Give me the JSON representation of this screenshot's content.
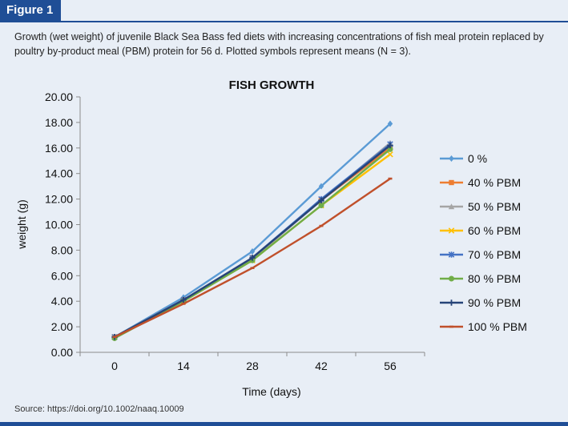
{
  "figure_label": "Figure 1",
  "caption": "Growth (wet weight) of juvenile Black Sea Bass fed diets with increasing concentrations of fish meal protein replaced by poultry by-product meal (PBM) protein for 56 d. Plotted symbols represent means (N = 3).",
  "source": "Source: https://doi.org/10.1002/naaq.10009",
  "colors": {
    "accent": "#1f4e96",
    "background": "#e8eef6"
  },
  "chart_data": {
    "type": "line",
    "title": "FISH GROWTH",
    "xlabel": "Time (days)",
    "ylabel": "weight (g)",
    "x": [
      0,
      14,
      28,
      42,
      56
    ],
    "x_tick_labels": [
      "0",
      "14",
      "28",
      "42",
      "56"
    ],
    "ylim": [
      0,
      20
    ],
    "y_tick_labels": [
      "0.00",
      "2.00",
      "4.00",
      "6.00",
      "8.00",
      "10.00",
      "12.00",
      "14.00",
      "16.00",
      "18.00",
      "20.00"
    ],
    "legend_position": "right",
    "grid": false,
    "series": [
      {
        "name": "0 %",
        "color": "#5b9bd5",
        "marker": "diamond",
        "values": [
          1.2,
          4.3,
          7.9,
          13.0,
          17.9
        ]
      },
      {
        "name": "40 % PBM",
        "color": "#ed7d31",
        "marker": "square",
        "values": [
          1.2,
          4.1,
          7.4,
          11.9,
          16.0
        ]
      },
      {
        "name": "50 % PBM",
        "color": "#a5a5a5",
        "marker": "triangle",
        "values": [
          1.2,
          4.1,
          7.3,
          11.9,
          16.4
        ]
      },
      {
        "name": "60 % PBM",
        "color": "#ffc000",
        "marker": "x",
        "values": [
          1.2,
          4.0,
          7.2,
          11.5,
          15.5
        ]
      },
      {
        "name": "70 % PBM",
        "color": "#4472c4",
        "marker": "asterisk",
        "values": [
          1.2,
          4.1,
          7.4,
          12.0,
          16.3
        ]
      },
      {
        "name": "80 % PBM",
        "color": "#70ad47",
        "marker": "circle",
        "values": [
          1.1,
          4.0,
          7.2,
          11.5,
          15.9
        ]
      },
      {
        "name": "90 % PBM",
        "color": "#264478",
        "marker": "plus",
        "values": [
          1.2,
          4.1,
          7.4,
          11.9,
          16.2
        ]
      },
      {
        "name": "100 % PBM",
        "color": "#c0502b",
        "marker": "dash",
        "values": [
          1.2,
          3.8,
          6.6,
          9.9,
          13.6
        ]
      }
    ]
  }
}
